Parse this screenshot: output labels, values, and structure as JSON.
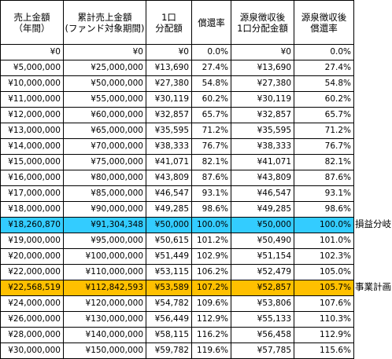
{
  "headers": [
    "売上金額\n（年間）",
    "累計売上金額\n(ファンド対象期間)",
    "1口\n分配額",
    "償還率",
    "源泉徴収後\n1口分配金額",
    "源泉徴収後\n償還率"
  ],
  "rows": [
    {
      "cells": [
        "¥0",
        "¥0",
        "¥0",
        "0.0%",
        "¥0",
        "0.0%"
      ],
      "highlight": "",
      "note": ""
    },
    {
      "cells": [
        "¥5,000,000",
        "¥25,000,000",
        "¥13,690",
        "27.4%",
        "¥13,690",
        "27.4%"
      ],
      "highlight": "",
      "note": ""
    },
    {
      "cells": [
        "¥10,000,000",
        "¥50,000,000",
        "¥27,380",
        "54.8%",
        "¥27,380",
        "54.8%"
      ],
      "highlight": "",
      "note": ""
    },
    {
      "cells": [
        "¥11,000,000",
        "¥55,000,000",
        "¥30,119",
        "60.2%",
        "¥30,119",
        "60.2%"
      ],
      "highlight": "",
      "note": ""
    },
    {
      "cells": [
        "¥12,000,000",
        "¥60,000,000",
        "¥32,857",
        "65.7%",
        "¥32,857",
        "65.7%"
      ],
      "highlight": "",
      "note": ""
    },
    {
      "cells": [
        "¥13,000,000",
        "¥65,000,000",
        "¥35,595",
        "71.2%",
        "¥35,595",
        "71.2%"
      ],
      "highlight": "",
      "note": ""
    },
    {
      "cells": [
        "¥14,000,000",
        "¥70,000,000",
        "¥38,333",
        "76.7%",
        "¥38,333",
        "76.7%"
      ],
      "highlight": "",
      "note": ""
    },
    {
      "cells": [
        "¥15,000,000",
        "¥75,000,000",
        "¥41,071",
        "82.1%",
        "¥41,071",
        "82.1%"
      ],
      "highlight": "",
      "note": ""
    },
    {
      "cells": [
        "¥16,000,000",
        "¥80,000,000",
        "¥43,809",
        "87.6%",
        "¥43,809",
        "87.6%"
      ],
      "highlight": "",
      "note": ""
    },
    {
      "cells": [
        "¥17,000,000",
        "¥85,000,000",
        "¥46,547",
        "93.1%",
        "¥46,547",
        "93.1%"
      ],
      "highlight": "",
      "note": ""
    },
    {
      "cells": [
        "¥18,000,000",
        "¥90,000,000",
        "¥49,285",
        "98.6%",
        "¥49,285",
        "98.6%"
      ],
      "highlight": "",
      "note": ""
    },
    {
      "cells": [
        "¥18,260,870",
        "¥91,304,348",
        "¥50,000",
        "100.0%",
        "¥50,000",
        "100.0%"
      ],
      "highlight": "blue",
      "note": "損益分岐"
    },
    {
      "cells": [
        "¥19,000,000",
        "¥95,000,000",
        "¥50,615",
        "101.2%",
        "¥50,490",
        "101.0%"
      ],
      "highlight": "",
      "note": ""
    },
    {
      "cells": [
        "¥20,000,000",
        "¥100,000,000",
        "¥51,449",
        "102.9%",
        "¥51,154",
        "102.3%"
      ],
      "highlight": "",
      "note": ""
    },
    {
      "cells": [
        "¥22,000,000",
        "¥110,000,000",
        "¥53,115",
        "106.2%",
        "¥52,479",
        "105.0%"
      ],
      "highlight": "",
      "note": ""
    },
    {
      "cells": [
        "¥22,568,519",
        "¥112,842,593",
        "¥53,589",
        "107.2%",
        "¥52,857",
        "105.7%"
      ],
      "highlight": "orange",
      "note": "事業計画"
    },
    {
      "cells": [
        "¥24,000,000",
        "¥120,000,000",
        "¥54,782",
        "109.6%",
        "¥53,806",
        "107.6%"
      ],
      "highlight": "",
      "note": ""
    },
    {
      "cells": [
        "¥26,000,000",
        "¥130,000,000",
        "¥56,449",
        "112.9%",
        "¥55,133",
        "110.3%"
      ],
      "highlight": "",
      "note": ""
    },
    {
      "cells": [
        "¥28,000,000",
        "¥140,000,000",
        "¥58,115",
        "116.2%",
        "¥56,458",
        "112.9%"
      ],
      "highlight": "",
      "note": ""
    },
    {
      "cells": [
        "¥30,000,000",
        "¥150,000,000",
        "¥59,782",
        "119.6%",
        "¥57,785",
        "115.6%"
      ],
      "highlight": "",
      "note": ""
    }
  ],
  "colors": {
    "blue_highlight": "#33ccff",
    "orange_highlight": "#ffc000",
    "border": "#000000"
  }
}
